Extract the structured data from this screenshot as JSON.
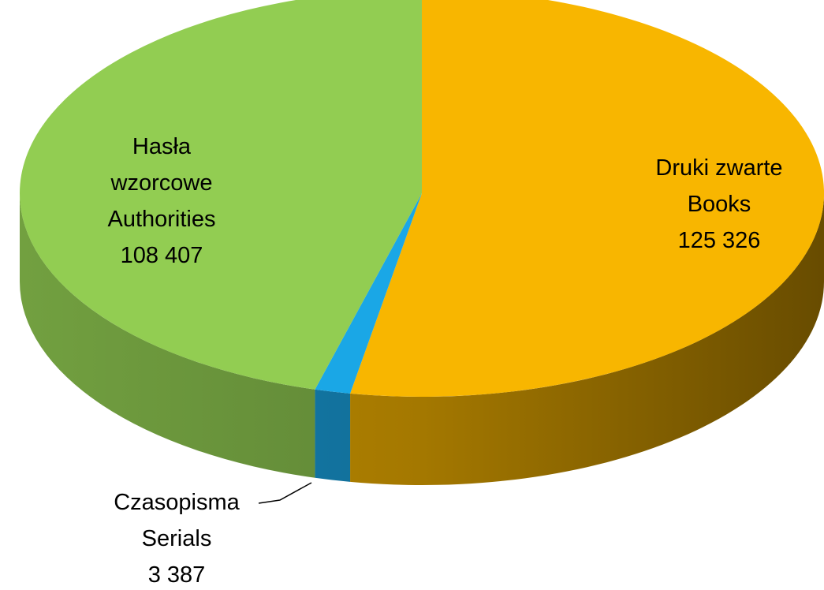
{
  "chart_data": {
    "type": "pie",
    "style": "3d",
    "title": "",
    "slices": [
      {
        "key": "books",
        "lines": [
          "Druki zwarte",
          "Books",
          "125 326"
        ],
        "value": 125326,
        "color": "#f8b600"
      },
      {
        "key": "serials",
        "lines": [
          "Czasopisma",
          "Serials",
          "3 387"
        ],
        "value": 3387,
        "color": "#1aa7e6"
      },
      {
        "key": "authorities",
        "lines": [
          "Hasła",
          "wzorcowe",
          "Authorities",
          "108 407"
        ],
        "value": 108407,
        "color": "#92cd52"
      }
    ],
    "start_angle": "12 o'clock, clockwise",
    "labels_position": "inside, serials outside with leader line"
  }
}
